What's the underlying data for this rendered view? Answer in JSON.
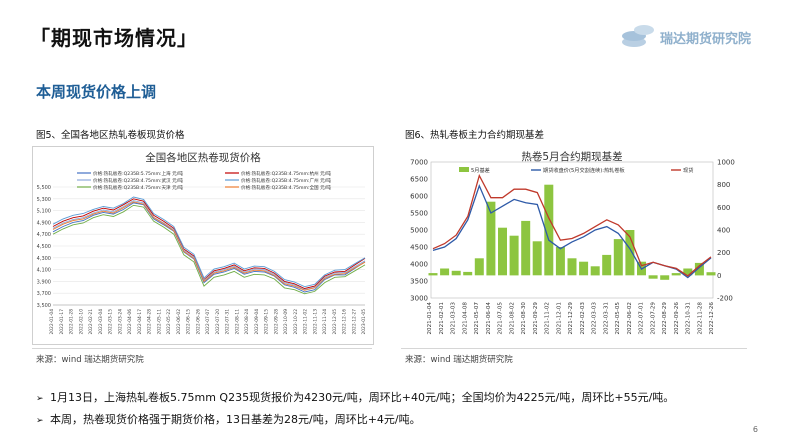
{
  "slide": {
    "title": "「期现市场情况」",
    "subtitle": "本周现货价格上调",
    "logo_text": "瑞达期货研究院",
    "page_number": "6"
  },
  "fig5": {
    "caption": "图5、全国各地区热轧卷板现货价格",
    "source": "来源：wind   瑞达期货研究院"
  },
  "fig6": {
    "caption": "图6、热轧卷板主力合约期现基差",
    "source": "来源：wind   瑞达期货研究院"
  },
  "bullets": [
    "1月13日，上海热轧卷板5.75mm Q235现货报价为4230元/吨，周环比+40元/吨；全国均价为4225元/吨，周环比+55元/吨。",
    "本周，热卷现货价格强于期货价格，13日基差为28元/吨，周环比+4元/吨。"
  ],
  "colors": {
    "title_blue": "#1f5e96",
    "shanghai": "#4472c4",
    "hangzhou": "#c00000",
    "wuhan": "#8faadc",
    "guangzhou": "#5b9bd5",
    "tianjin": "#70ad47",
    "national": "#ed7d31",
    "basis_bar": "#8dc540",
    "futures": "#2e5aa8",
    "spot": "#c0392b"
  },
  "chart_data": [
    {
      "type": "line",
      "title": "全国各地区热卷现货价格",
      "x": [
        "2022-01-04",
        "2022-01-17",
        "2022-02-07",
        "2022-02-18",
        "2022-03-03",
        "2022-03-14",
        "2022-03-25",
        "2022-04-07",
        "2022-04-18",
        "2022-04-29",
        "2022-05-13",
        "2022-05-24",
        "2022-06-06",
        "2022-06-17",
        "2022-06-28",
        "2022-07-11",
        "2022-07-22",
        "2022-08-02",
        "2022-08-15",
        "2022-08-26",
        "2022-09-06",
        "2022-09-19",
        "2022-09-30",
        "2022-10-13",
        "2022-10-24",
        "2022-11-04",
        "2022-11-15",
        "2022-11-28",
        "2022-12-09",
        "2022-12-20",
        "2022-12-31",
        "2023-01-12"
      ],
      "x_tick_labels": [
        "2022-01-04",
        "2022-01-17",
        "2022-01-28",
        "2022-02-10",
        "2022-02-21",
        "2022-03-04",
        "2022-03-15",
        "2022-03-24",
        "2022-04-06",
        "2022-04-17",
        "2022-04-28",
        "2022-05-11",
        "2022-05-22",
        "2022-06-02",
        "2022-06-15",
        "2022-06-26",
        "2022-07-07",
        "2022-07-20",
        "2022-07-31",
        "2022-08-11",
        "2022-08-24",
        "2022-09-04",
        "2022-09-15",
        "2022-09-28",
        "2022-10-09",
        "2022-10-22",
        "2022-11-02",
        "2022-11-13",
        "2022-11-24",
        "2022-12-05",
        "2022-12-16",
        "2022-12-27",
        "2023-01-05"
      ],
      "ylim": [
        3500,
        5500
      ],
      "yticks": [
        3500,
        3700,
        3900,
        4100,
        4300,
        4500,
        4700,
        4900,
        5100,
        5300,
        5500
      ],
      "ytick_labels": [
        "3,500",
        "3,700",
        "3,900",
        "4,100",
        "4,300",
        "4,500",
        "4,700",
        "4,900",
        "5,100",
        "5,300",
        "5,500"
      ],
      "legend_position": "top",
      "series": [
        {
          "name": "价格:热轧板卷:Q235B:5.75mm:上海 元/吨",
          "color_key": "shanghai",
          "values": [
            4740,
            4830,
            4900,
            4930,
            5020,
            5070,
            5040,
            5120,
            5230,
            5200,
            4960,
            4860,
            4750,
            4400,
            4280,
            3880,
            4020,
            4060,
            4120,
            4020,
            4070,
            4060,
            3990,
            3840,
            3800,
            3720,
            3760,
            3930,
            4010,
            4010,
            4120,
            4230
          ]
        },
        {
          "name": "价格:热轧板卷:Q235B:4.75mm:杭州 元/吨",
          "color_key": "hangzhou",
          "values": [
            4830,
            4920,
            4980,
            5010,
            5090,
            5140,
            5110,
            5200,
            5300,
            5260,
            5020,
            4920,
            4800,
            4450,
            4330,
            3930,
            4080,
            4120,
            4180,
            4080,
            4130,
            4120,
            4040,
            3900,
            3860,
            3780,
            3820,
            3990,
            4060,
            4070,
            4180,
            4290
          ]
        },
        {
          "name": "价格:热轧板卷:Q235B:4.75mm:武汉 元/吨",
          "color_key": "wuhan",
          "values": [
            4800,
            4890,
            4950,
            4980,
            5060,
            5110,
            5080,
            5170,
            5270,
            5230,
            4990,
            4890,
            4780,
            4430,
            4310,
            3920,
            4060,
            4100,
            4160,
            4060,
            4110,
            4100,
            4020,
            3880,
            3840,
            3760,
            3800,
            3970,
            4040,
            4050,
            4150,
            4250
          ]
        },
        {
          "name": "价格:热轧板卷:Q235B:4.75mm:广州 元/吨",
          "color_key": "guangzhou",
          "values": [
            4870,
            4960,
            5020,
            5050,
            5120,
            5170,
            5140,
            5220,
            5330,
            5290,
            5050,
            4950,
            4830,
            4480,
            4360,
            3960,
            4110,
            4150,
            4210,
            4110,
            4160,
            4150,
            4070,
            3930,
            3890,
            3810,
            3850,
            4010,
            4090,
            4100,
            4200,
            4300
          ]
        },
        {
          "name": "价格:热轧板卷:Q235B:4.75mm:天津 元/吨",
          "color_key": "tianjin",
          "values": [
            4700,
            4790,
            4860,
            4890,
            4980,
            5030,
            5000,
            5080,
            5190,
            5160,
            4920,
            4820,
            4700,
            4350,
            4230,
            3820,
            3970,
            4010,
            4070,
            3970,
            4020,
            4010,
            3940,
            3790,
            3760,
            3690,
            3730,
            3880,
            3970,
            3980,
            4080,
            4180
          ]
        },
        {
          "name": "价格:热轧板卷:Q235B:4.75mm:全国 元/吨",
          "color_key": "national",
          "values": [
            4780,
            4870,
            4930,
            4960,
            5040,
            5090,
            5060,
            5150,
            5250,
            5210,
            4980,
            4880,
            4760,
            4410,
            4290,
            3900,
            4040,
            4080,
            4140,
            4040,
            4090,
            4080,
            4000,
            3860,
            3820,
            3750,
            3790,
            3950,
            4020,
            4030,
            4130,
            4225
          ]
        }
      ]
    },
    {
      "type": "bar+line",
      "title": "热卷5月合约期现基差",
      "x": [
        "2021-01-04",
        "2021-02-01",
        "2021-03-01",
        "2021-04-01",
        "2021-05-01",
        "2021-06-01",
        "2021-07-01",
        "2021-08-01",
        "2021-09-01",
        "2021-10-01",
        "2021-11-01",
        "2021-12-01",
        "2022-01-01",
        "2022-02-01",
        "2022-03-01",
        "2022-04-01",
        "2022-05-01",
        "2022-06-01",
        "2022-07-01",
        "2022-08-01",
        "2022-09-01",
        "2022-10-01",
        "2022-11-01",
        "2022-12-01",
        "2023-01-13"
      ],
      "x_tick_labels": [
        "2021-01-04",
        "2021-02-01",
        "2021-03-03",
        "2021-04-08",
        "2021-05-07",
        "2021-06-04",
        "2021-07-05",
        "2021-08-02",
        "2021-08-30",
        "2021-09-29",
        "2021-11-02",
        "2021-12-01",
        "2021-12-29",
        "2022-02-03",
        "2022-03-03",
        "2022-03-31",
        "2022-05-05",
        "2022-06-02",
        "2022-07-01",
        "2022-07-29",
        "2022-08-29",
        "2022-09-26",
        "2022-10-31",
        "2022-11-28",
        "2022-12-26"
      ],
      "left_ylim": [
        3000,
        7000
      ],
      "left_yticks": [
        3000,
        3500,
        4000,
        4500,
        5000,
        5500,
        6000,
        6500,
        7000
      ],
      "right_ylim": [
        -200,
        1000
      ],
      "right_yticks": [
        -200,
        0,
        200,
        400,
        600,
        800,
        1000
      ],
      "legend_position": "top",
      "series": [
        {
          "name": "5月基差",
          "axis": "right",
          "kind": "bar",
          "color_key": "basis_bar",
          "values": [
            20,
            60,
            40,
            30,
            150,
            650,
            420,
            350,
            480,
            300,
            800,
            250,
            150,
            120,
            80,
            180,
            320,
            400,
            120,
            -30,
            -40,
            20,
            60,
            110,
            28
          ]
        },
        {
          "name": "期货收盘价(5月交割连续):热轧卷板",
          "axis": "left",
          "kind": "line",
          "color_key": "futures",
          "values": [
            4400,
            4500,
            4750,
            5300,
            6300,
            5500,
            5700,
            5900,
            5800,
            5750,
            4700,
            4450,
            4650,
            4800,
            5000,
            5100,
            4900,
            4450,
            3850,
            4050,
            3950,
            3850,
            3600,
            3900,
            4180
          ]
        },
        {
          "name": "现货",
          "axis": "left",
          "kind": "line",
          "color_key": "spot",
          "values": [
            4450,
            4600,
            4850,
            5400,
            6600,
            5950,
            5950,
            6200,
            6200,
            6100,
            5350,
            4700,
            4750,
            4900,
            5100,
            5300,
            5150,
            4800,
            3950,
            4050,
            3950,
            3870,
            3650,
            3950,
            4210
          ]
        }
      ]
    }
  ]
}
